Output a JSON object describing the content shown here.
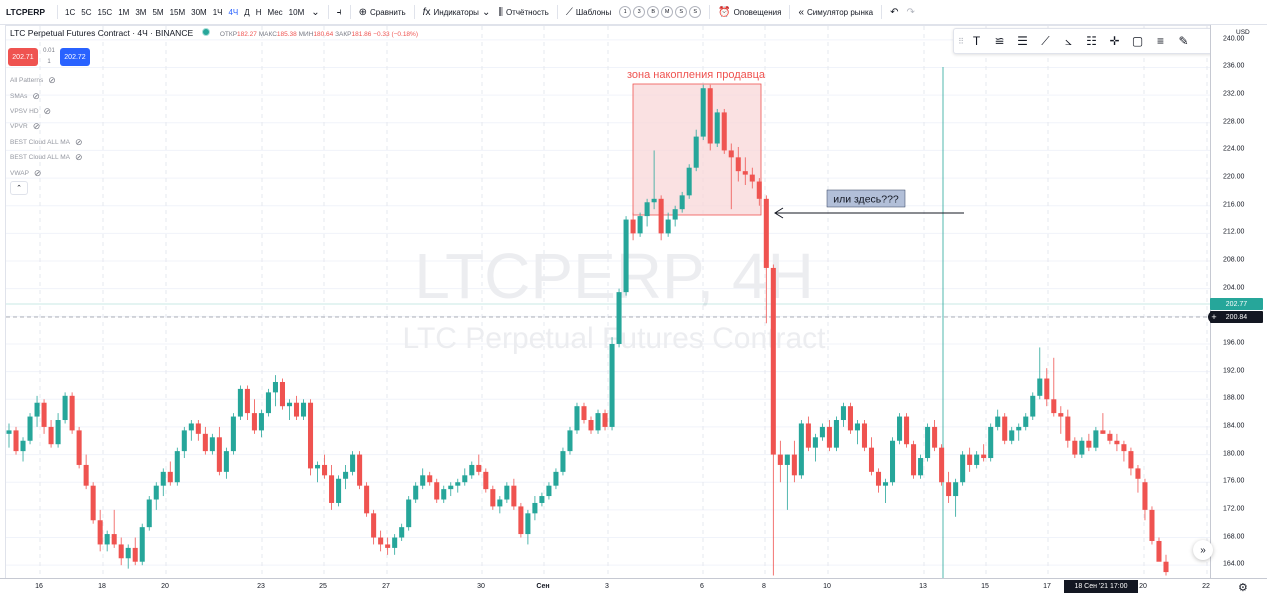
{
  "toolbar": {
    "symbol": "LTCPERP",
    "intervals": [
      "1С",
      "5С",
      "15С",
      "1М",
      "3М",
      "5М",
      "15М",
      "30М",
      "1Ч",
      "4Ч",
      "Д",
      "Н",
      "Мес",
      "10М"
    ],
    "active_interval": "4Ч",
    "compare_label": "Сравнить",
    "indicators_label": "Индикаторы",
    "report_label": "Отчётность",
    "templates_label": "Шаблоны",
    "template_circles": [
      "1",
      "3",
      "В",
      "М",
      "S",
      "S"
    ],
    "alerts_label": "Оповещения",
    "replay_label": "Симулятор рынка"
  },
  "legend": {
    "title": "LTC Perpetual Futures Contract · 4Ч · BINANCE",
    "open_label": "ОТКР",
    "open": "182.27",
    "high_label": "МАКС",
    "high": "185.38",
    "low_label": "МИН",
    "low": "180.64",
    "close_label": "ЗАКР",
    "close": "181.86",
    "change": "−0.33 (−0.18%)"
  },
  "quote": {
    "sell": "202.71",
    "spread_top": "0.01",
    "spread_bottom": "1",
    "buy": "202.72"
  },
  "studies": [
    "All Patterns",
    "SMAs",
    "VPSV HD",
    "VPVR",
    "BEST Cloud ALL MA",
    "BEST Cloud ALL MA",
    "VWAP"
  ],
  "watermark": {
    "line1": "LTCPERP, 4H",
    "line2": "LTC Perpetual Futures Contract"
  },
  "annotations": {
    "zone_label": "зона накопления продавца",
    "note": "или здесь???"
  },
  "price_axis": {
    "currency": "USD",
    "ticks": [
      "240.00",
      "236.00",
      "232.00",
      "228.00",
      "224.00",
      "220.00",
      "216.00",
      "212.00",
      "208.00",
      "204.00",
      "200.00",
      "196.00",
      "192.00",
      "188.00",
      "184.00",
      "180.00",
      "176.00",
      "172.00",
      "168.00",
      "164.00"
    ],
    "last_price": "202.77",
    "crosshair_price": "200.84"
  },
  "time_axis": {
    "ticks": [
      "16",
      "18",
      "20",
      "23",
      "25",
      "27",
      "30",
      "Сен",
      "3",
      "6",
      "8",
      "10",
      "13",
      "15",
      "17",
      "20",
      "22"
    ],
    "crosshair_time": "18 Сен '21  17:00"
  },
  "colors": {
    "up": "#26a69a",
    "down": "#ef5350",
    "zone_fill": "#f8d7d8",
    "zone_border": "#ef5350",
    "accent": "#2962ff"
  },
  "chart_data": {
    "type": "candlestick",
    "symbol": "LTCPERP",
    "timeframe": "4H",
    "ylim": [
      162,
      242
    ],
    "ohlc": [
      [
        183.0,
        184.5,
        181.0,
        183.5
      ],
      [
        183.5,
        184.0,
        180.0,
        180.5
      ],
      [
        180.5,
        182.5,
        179.0,
        182.0
      ],
      [
        182.0,
        186.0,
        181.5,
        185.5
      ],
      [
        185.5,
        188.5,
        184.0,
        187.5
      ],
      [
        187.5,
        188.0,
        183.0,
        184.0
      ],
      [
        184.0,
        185.0,
        181.0,
        181.5
      ],
      [
        181.5,
        186.0,
        181.0,
        185.0
      ],
      [
        185.0,
        189.0,
        184.5,
        188.5
      ],
      [
        188.5,
        189.0,
        183.0,
        183.5
      ],
      [
        183.5,
        184.0,
        178.0,
        178.5
      ],
      [
        178.5,
        180.0,
        175.0,
        175.5
      ],
      [
        175.5,
        176.0,
        170.0,
        170.5
      ],
      [
        170.5,
        172.0,
        166.0,
        167.0
      ],
      [
        167.0,
        169.0,
        166.0,
        168.5
      ],
      [
        168.5,
        172.0,
        166.5,
        167.0
      ],
      [
        167.0,
        168.0,
        164.0,
        165.0
      ],
      [
        165.0,
        167.0,
        163.5,
        166.5
      ],
      [
        166.5,
        168.0,
        164.0,
        164.5
      ],
      [
        164.5,
        170.0,
        164.0,
        169.5
      ],
      [
        169.5,
        174.0,
        169.0,
        173.5
      ],
      [
        173.5,
        176.0,
        172.0,
        175.5
      ],
      [
        175.5,
        178.0,
        174.0,
        177.5
      ],
      [
        177.5,
        179.0,
        175.5,
        176.0
      ],
      [
        176.0,
        181.0,
        175.5,
        180.5
      ],
      [
        180.5,
        184.0,
        179.5,
        183.5
      ],
      [
        183.5,
        185.0,
        182.0,
        184.5
      ],
      [
        184.5,
        185.0,
        182.0,
        183.0
      ],
      [
        183.0,
        184.0,
        180.0,
        180.5
      ],
      [
        180.5,
        183.0,
        180.0,
        182.5
      ],
      [
        182.5,
        184.0,
        177.0,
        177.5
      ],
      [
        177.5,
        181.0,
        176.5,
        180.5
      ],
      [
        180.5,
        186.0,
        180.0,
        185.5
      ],
      [
        185.5,
        190.0,
        185.0,
        189.5
      ],
      [
        189.5,
        190.0,
        185.0,
        186.0
      ],
      [
        186.0,
        188.0,
        183.0,
        183.5
      ],
      [
        183.5,
        186.5,
        182.5,
        186.0
      ],
      [
        186.0,
        189.5,
        185.5,
        189.0
      ],
      [
        189.0,
        191.5,
        187.0,
        190.5
      ],
      [
        190.5,
        191.0,
        186.5,
        187.0
      ],
      [
        187.0,
        188.0,
        185.0,
        187.5
      ],
      [
        187.5,
        188.5,
        185.0,
        185.5
      ],
      [
        185.5,
        188.0,
        185.0,
        187.5
      ],
      [
        187.5,
        188.0,
        177.0,
        178.0
      ],
      [
        178.0,
        179.0,
        176.0,
        178.5
      ],
      [
        178.5,
        180.0,
        176.5,
        177.0
      ],
      [
        177.0,
        178.5,
        172.0,
        173.0
      ],
      [
        173.0,
        177.0,
        172.5,
        176.5
      ],
      [
        176.5,
        178.5,
        175.0,
        177.5
      ],
      [
        177.5,
        180.5,
        177.0,
        180.0
      ],
      [
        180.0,
        180.5,
        175.0,
        175.5
      ],
      [
        175.5,
        176.0,
        171.0,
        171.5
      ],
      [
        171.5,
        172.0,
        167.0,
        168.0
      ],
      [
        168.0,
        169.0,
        166.0,
        167.0
      ],
      [
        167.0,
        168.0,
        165.5,
        166.5
      ],
      [
        166.5,
        168.5,
        165.5,
        168.0
      ],
      [
        168.0,
        170.0,
        167.5,
        169.5
      ],
      [
        169.5,
        174.0,
        169.0,
        173.5
      ],
      [
        173.5,
        176.0,
        173.0,
        175.5
      ],
      [
        175.5,
        178.0,
        175.0,
        177.0
      ],
      [
        177.0,
        177.5,
        175.5,
        176.0
      ],
      [
        176.0,
        176.5,
        173.0,
        173.5
      ],
      [
        173.5,
        175.5,
        173.0,
        175.0
      ],
      [
        175.0,
        176.0,
        174.0,
        175.5
      ],
      [
        175.5,
        176.5,
        174.5,
        176.0
      ],
      [
        176.0,
        178.0,
        175.5,
        177.0
      ],
      [
        177.0,
        179.0,
        176.5,
        178.5
      ],
      [
        178.5,
        180.0,
        177.0,
        177.5
      ],
      [
        177.5,
        178.0,
        174.5,
        175.0
      ],
      [
        175.0,
        175.5,
        172.0,
        172.5
      ],
      [
        172.5,
        174.0,
        171.5,
        173.5
      ],
      [
        173.5,
        176.0,
        173.0,
        175.5
      ],
      [
        175.5,
        176.5,
        172.0,
        172.5
      ],
      [
        172.5,
        173.0,
        168.0,
        168.5
      ],
      [
        168.5,
        172.0,
        167.0,
        171.5
      ],
      [
        171.5,
        174.0,
        170.5,
        173.0
      ],
      [
        173.0,
        174.5,
        172.5,
        174.0
      ],
      [
        174.0,
        176.0,
        173.5,
        175.5
      ],
      [
        175.5,
        178.0,
        175.0,
        177.5
      ],
      [
        177.5,
        181.0,
        177.0,
        180.5
      ],
      [
        180.5,
        184.0,
        180.0,
        183.5
      ],
      [
        183.5,
        187.5,
        183.0,
        187.0
      ],
      [
        187.0,
        187.5,
        184.5,
        185.0
      ],
      [
        185.0,
        185.5,
        183.0,
        183.5
      ],
      [
        183.5,
        186.5,
        183.0,
        186.0
      ],
      [
        186.0,
        186.5,
        183.5,
        184.0
      ],
      [
        184.0,
        197.0,
        183.5,
        196.0
      ],
      [
        196.0,
        204.0,
        195.5,
        203.5
      ],
      [
        203.5,
        214.5,
        203.0,
        214.0
      ],
      [
        214.0,
        215.0,
        211.0,
        212.0
      ],
      [
        212.0,
        215.0,
        211.5,
        214.5
      ],
      [
        214.5,
        217.0,
        213.0,
        216.5
      ],
      [
        216.5,
        224.0,
        215.5,
        217.0
      ],
      [
        217.0,
        217.5,
        211.0,
        212.0
      ],
      [
        212.0,
        215.0,
        211.5,
        214.0
      ],
      [
        214.0,
        216.0,
        213.0,
        215.5
      ],
      [
        215.5,
        218.0,
        215.0,
        217.5
      ],
      [
        217.5,
        222.0,
        217.0,
        221.5
      ],
      [
        221.5,
        227.0,
        221.0,
        226.0
      ],
      [
        226.0,
        233.5,
        225.5,
        233.0
      ],
      [
        233.0,
        233.5,
        224.0,
        225.0
      ],
      [
        225.0,
        230.0,
        224.5,
        229.5
      ],
      [
        229.5,
        230.0,
        223.5,
        224.0
      ],
      [
        224.0,
        225.0,
        215.5,
        223.0
      ],
      [
        223.0,
        224.5,
        219.5,
        221.0
      ],
      [
        221.0,
        223.0,
        219.0,
        220.5
      ],
      [
        220.5,
        221.5,
        218.5,
        219.5
      ],
      [
        219.5,
        220.0,
        216.0,
        217.0
      ],
      [
        217.0,
        217.5,
        199.0,
        207.0
      ],
      [
        207.0,
        207.5,
        162.5,
        180.0
      ],
      [
        180.0,
        182.0,
        176.0,
        178.5
      ],
      [
        178.5,
        180.0,
        172.0,
        180.0
      ],
      [
        180.0,
        182.0,
        176.0,
        177.0
      ],
      [
        177.0,
        185.0,
        176.5,
        184.5
      ],
      [
        184.5,
        185.5,
        180.5,
        181.0
      ],
      [
        181.0,
        183.0,
        179.0,
        182.5
      ],
      [
        182.5,
        184.5,
        182.0,
        184.0
      ],
      [
        184.0,
        185.0,
        180.5,
        181.0
      ],
      [
        181.0,
        185.5,
        180.5,
        185.0
      ],
      [
        185.0,
        187.5,
        184.0,
        187.0
      ],
      [
        187.0,
        187.5,
        183.0,
        183.5
      ],
      [
        183.5,
        185.0,
        181.5,
        184.5
      ],
      [
        184.5,
        185.0,
        180.5,
        181.0
      ],
      [
        181.0,
        182.5,
        177.0,
        177.5
      ],
      [
        177.5,
        178.0,
        174.5,
        175.5
      ],
      [
        175.5,
        176.5,
        173.0,
        176.0
      ],
      [
        176.0,
        182.5,
        175.5,
        182.0
      ],
      [
        182.0,
        186.0,
        181.5,
        185.5
      ],
      [
        185.5,
        186.0,
        181.0,
        181.5
      ],
      [
        181.5,
        182.0,
        176.5,
        177.0
      ],
      [
        177.0,
        180.0,
        176.5,
        179.5
      ],
      [
        179.5,
        184.5,
        179.0,
        184.0
      ],
      [
        184.0,
        185.0,
        180.5,
        181.0
      ],
      [
        181.0,
        181.5,
        175.5,
        176.0
      ],
      [
        176.0,
        177.5,
        173.0,
        174.0
      ],
      [
        174.0,
        176.5,
        171.0,
        176.0
      ],
      [
        176.0,
        180.5,
        175.5,
        180.0
      ],
      [
        180.0,
        181.0,
        177.5,
        178.5
      ],
      [
        178.5,
        180.5,
        178.0,
        180.0
      ],
      [
        180.0,
        181.5,
        179.0,
        179.5
      ],
      [
        179.5,
        184.5,
        179.0,
        184.0
      ],
      [
        184.0,
        186.5,
        183.5,
        185.5
      ],
      [
        185.5,
        186.0,
        181.5,
        182.0
      ],
      [
        182.0,
        184.0,
        181.5,
        183.5
      ],
      [
        183.5,
        184.5,
        182.0,
        184.0
      ],
      [
        184.0,
        186.0,
        183.5,
        185.5
      ],
      [
        185.5,
        189.0,
        185.0,
        188.5
      ],
      [
        188.5,
        195.5,
        188.0,
        191.0
      ],
      [
        191.0,
        192.5,
        187.0,
        188.0
      ],
      [
        188.0,
        194.0,
        185.5,
        186.0
      ],
      [
        186.0,
        187.0,
        183.0,
        185.5
      ],
      [
        185.5,
        186.5,
        181.0,
        182.0
      ],
      [
        182.0,
        182.5,
        179.5,
        180.0
      ],
      [
        180.0,
        182.5,
        179.5,
        182.0
      ],
      [
        182.0,
        183.0,
        180.5,
        181.0
      ],
      [
        181.0,
        184.0,
        180.5,
        183.5
      ],
      [
        183.5,
        186.0,
        183.0,
        183.0
      ],
      [
        183.0,
        183.5,
        181.5,
        182.0
      ],
      [
        182.0,
        183.0,
        180.5,
        181.5
      ],
      [
        181.5,
        182.0,
        179.0,
        180.5
      ],
      [
        180.5,
        181.0,
        177.0,
        178.0
      ],
      [
        178.0,
        178.5,
        174.5,
        176.5
      ],
      [
        176.0,
        176.5,
        170.5,
        172.0
      ],
      [
        172.0,
        172.5,
        167.0,
        167.5
      ],
      [
        167.5,
        168.0,
        165.0,
        164.5
      ],
      [
        164.5,
        165.5,
        162.5,
        163.0
      ]
    ]
  }
}
